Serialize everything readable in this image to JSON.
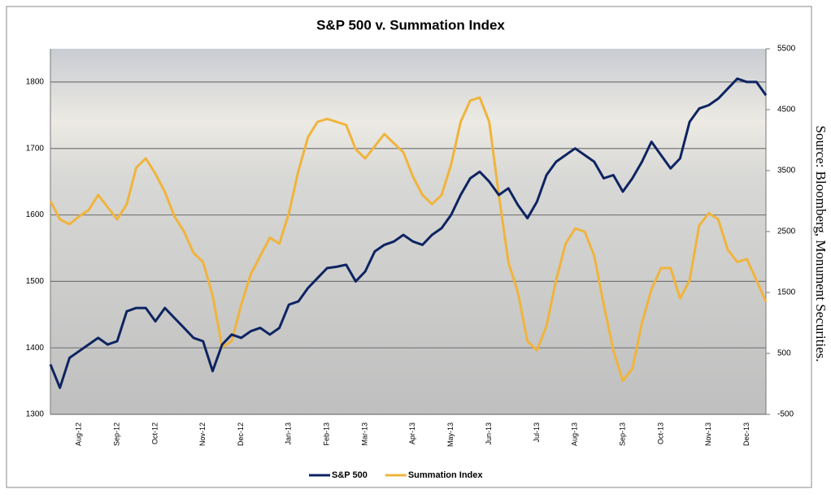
{
  "chart_data": {
    "type": "line",
    "title": "S&P 500 v. Summation Index",
    "source": "Source: Bloomberg, Monument Securities.",
    "categories": [
      null,
      null,
      null,
      "Aug-12",
      null,
      null,
      null,
      "Sep-12",
      null,
      null,
      null,
      "Oct-12",
      null,
      null,
      null,
      null,
      "Nov-12",
      null,
      null,
      null,
      "Dec-12",
      null,
      null,
      null,
      null,
      "Jan-13",
      null,
      null,
      null,
      "Feb-13",
      null,
      null,
      null,
      "Mar-13",
      null,
      null,
      null,
      null,
      "Apr-13",
      null,
      null,
      null,
      "May-13",
      null,
      null,
      null,
      "Jun-13",
      null,
      null,
      null,
      null,
      "Jul-13",
      null,
      null,
      null,
      "Aug-13",
      null,
      null,
      null,
      null,
      "Sep-13",
      null,
      null,
      null,
      "Oct-13",
      null,
      null,
      null,
      null,
      "Nov-13",
      null,
      null,
      null,
      "Dec-13",
      null,
      null
    ],
    "series": [
      {
        "name": "S&P 500",
        "color": "#0d2461",
        "axis": "y",
        "values": [
          1375,
          1340,
          1385,
          1395,
          1405,
          1415,
          1405,
          1410,
          1455,
          1460,
          1460,
          1440,
          1460,
          1445,
          1430,
          1415,
          1410,
          1365,
          1405,
          1420,
          1415,
          1425,
          1430,
          1420,
          1430,
          1465,
          1470,
          1490,
          1505,
          1520,
          1522,
          1525,
          1500,
          1515,
          1545,
          1555,
          1560,
          1570,
          1560,
          1555,
          1570,
          1580,
          1600,
          1630,
          1655,
          1665,
          1650,
          1630,
          1640,
          1615,
          1595,
          1620,
          1660,
          1680,
          1690,
          1700,
          1690,
          1680,
          1655,
          1660,
          1635,
          1655,
          1680,
          1710,
          1690,
          1670,
          1685,
          1740,
          1760,
          1765,
          1775,
          1790,
          1805,
          1800,
          1800,
          1780
        ]
      },
      {
        "name": "Summation Index",
        "color": "#f0b43c",
        "axis": "y2",
        "values": [
          3000,
          2700,
          2620,
          2750,
          2850,
          3100,
          2900,
          2700,
          2950,
          3550,
          3700,
          3450,
          3150,
          2750,
          2500,
          2150,
          2000,
          1450,
          600,
          700,
          1300,
          1800,
          2100,
          2400,
          2300,
          2800,
          3500,
          4050,
          4300,
          4350,
          4300,
          4250,
          3850,
          3700,
          3900,
          4100,
          3950,
          3800,
          3400,
          3100,
          2950,
          3100,
          3600,
          4300,
          4650,
          4700,
          4300,
          3100,
          2000,
          1500,
          700,
          550,
          950,
          1700,
          2300,
          2550,
          2500,
          2100,
          1300,
          550,
          50,
          250,
          1000,
          1550,
          1900,
          1900,
          1400,
          1700,
          2600,
          2800,
          2700,
          2200,
          2000,
          2050,
          1700,
          1350
        ]
      }
    ],
    "ylim": [
      1300,
      1850
    ],
    "yticks": [
      1300,
      1400,
      1500,
      1600,
      1700,
      1800
    ],
    "y2lim": [
      -500,
      5500
    ],
    "y2ticks": [
      -500,
      500,
      1500,
      2500,
      3500,
      4500,
      5500
    ],
    "grid": true,
    "legend": "bottom"
  }
}
